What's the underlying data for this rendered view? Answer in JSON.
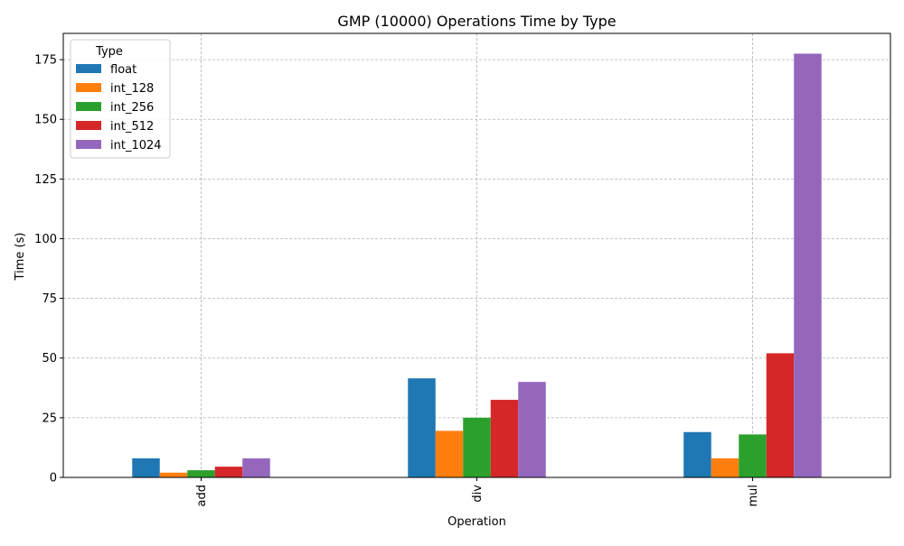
{
  "chart_data": {
    "type": "bar",
    "title": "GMP (10000) Operations Time by Type",
    "xlabel": "Operation",
    "ylabel": "Time (s)",
    "categories": [
      "add",
      "div",
      "mul"
    ],
    "ylim": [
      0,
      186
    ],
    "yticks": [
      0,
      25,
      50,
      75,
      100,
      125,
      150,
      175
    ],
    "grid": true,
    "legend": {
      "title": "Type",
      "placement": "top-left"
    },
    "series": [
      {
        "name": "float",
        "color": "#1f77b4",
        "values": [
          8.0,
          41.5,
          19.0
        ]
      },
      {
        "name": "int_128",
        "color": "#ff7f0e",
        "values": [
          2.0,
          19.5,
          8.0
        ]
      },
      {
        "name": "int_256",
        "color": "#2ca02c",
        "values": [
          3.0,
          25.0,
          18.0
        ]
      },
      {
        "name": "int_512",
        "color": "#d62728",
        "values": [
          4.5,
          32.5,
          52.0
        ]
      },
      {
        "name": "int_1024",
        "color": "#9467bd",
        "values": [
          8.0,
          40.0,
          177.5
        ]
      }
    ]
  }
}
